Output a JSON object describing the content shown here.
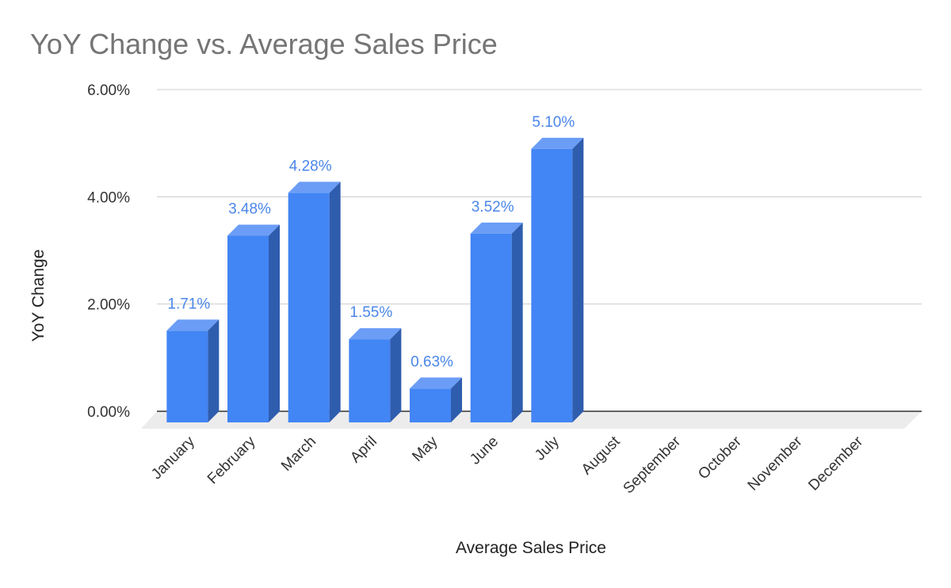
{
  "chart_data": {
    "type": "bar",
    "title": "YoY Change vs. Average Sales Price",
    "xlabel": "Average Sales Price",
    "ylabel": "YoY Change",
    "categories": [
      "January",
      "February",
      "March",
      "April",
      "May",
      "June",
      "July",
      "August",
      "September",
      "October",
      "November",
      "December"
    ],
    "values": [
      1.71,
      3.48,
      4.28,
      1.55,
      0.63,
      3.52,
      5.1,
      null,
      null,
      null,
      null,
      null
    ],
    "data_labels": [
      "1.71%",
      "3.48%",
      "4.28%",
      "1.55%",
      "0.63%",
      "3.52%",
      "5.10%",
      "",
      "",
      "",
      "",
      ""
    ],
    "yticks": [
      0,
      2,
      4,
      6
    ],
    "ytick_labels": [
      "0.00%",
      "2.00%",
      "4.00%",
      "6.00%"
    ],
    "ylim": [
      0,
      6
    ],
    "grid": true,
    "style_3d": true,
    "colors": {
      "front": "#4285f4",
      "top": "#6b9df6",
      "side": "#2f5dae",
      "floor": "#ececec",
      "label": "#4a86e8"
    }
  }
}
